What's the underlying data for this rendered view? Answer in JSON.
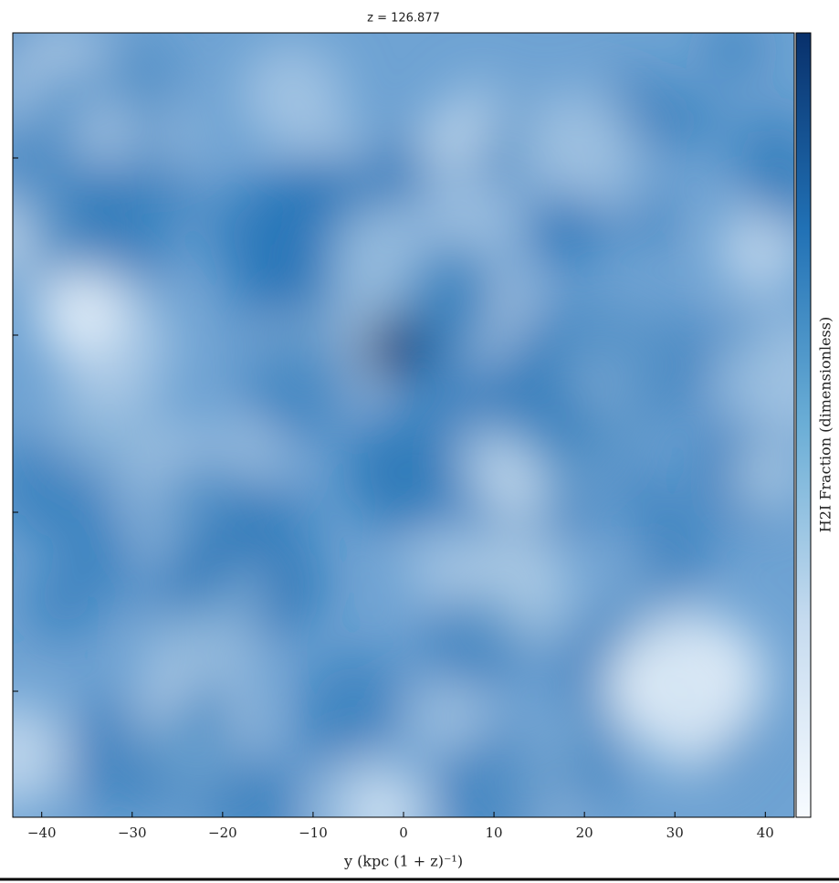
{
  "chart_data": {
    "type": "image",
    "title": "z = 126.877",
    "xlabel": "y  (kpc (1 + z)⁻¹)",
    "colorbar_label": "H2I Fraction  (dimensionless)",
    "colormap": [
      "#f7fbff",
      "#c6dbef",
      "#6baed6",
      "#2171b5",
      "#08306b"
    ],
    "xlim": [
      -43.2,
      43.2
    ],
    "xticks": [
      {
        "value": -40,
        "label": "−40"
      },
      {
        "value": -30,
        "label": "−30"
      },
      {
        "value": -20,
        "label": "−20"
      },
      {
        "value": -10,
        "label": "−10"
      },
      0,
      10,
      20,
      30,
      40
    ]
  }
}
